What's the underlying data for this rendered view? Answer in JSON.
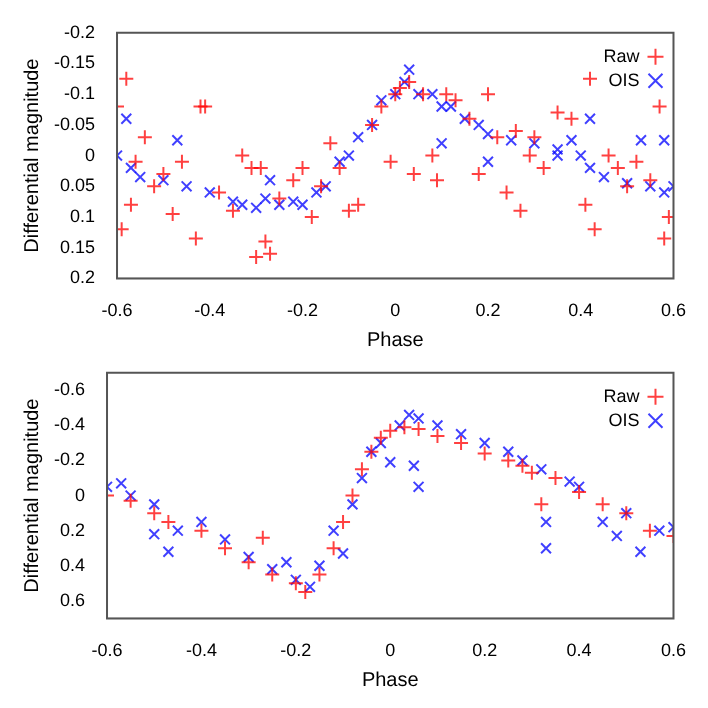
{
  "chart_data": [
    {
      "type": "scatter",
      "xlabel": "Phase",
      "ylabel": "Differential magnitude",
      "xlim": [
        -0.6,
        0.6
      ],
      "xticks": [
        -0.6,
        -0.4,
        -0.2,
        0,
        0.2,
        0.4,
        0.6
      ],
      "ylim": [
        0.2,
        -0.2
      ],
      "yticks": [
        -0.2,
        -0.15,
        -0.1,
        -0.05,
        0,
        0.05,
        0.1,
        0.15,
        0.2
      ],
      "grid": false,
      "legend": "top right",
      "series": [
        {
          "name": "Raw",
          "color": "#ff0000",
          "marker": "cross",
          "x": [
            -0.6,
            -0.59,
            -0.58,
            -0.57,
            -0.56,
            -0.54,
            -0.52,
            -0.5,
            -0.48,
            -0.46,
            -0.43,
            -0.42,
            -0.41,
            -0.38,
            -0.35,
            -0.33,
            -0.31,
            -0.3,
            -0.29,
            -0.28,
            -0.27,
            -0.25,
            -0.22,
            -0.2,
            -0.18,
            -0.16,
            -0.14,
            -0.12,
            -0.1,
            -0.08,
            -0.05,
            -0.03,
            -0.01,
            0,
            0.01,
            0.03,
            0.04,
            0.06,
            0.08,
            0.09,
            0.11,
            0.13,
            0.16,
            0.18,
            0.2,
            0.22,
            0.24,
            0.26,
            0.27,
            0.29,
            0.3,
            0.32,
            0.35,
            0.38,
            0.41,
            0.42,
            0.43,
            0.46,
            0.48,
            0.5,
            0.52,
            0.55,
            0.57,
            0.58,
            0.59
          ],
          "values": [
            -0.08,
            0.12,
            -0.125,
            0.08,
            0.01,
            -0.03,
            0.05,
            0.03,
            0.095,
            0.01,
            0.135,
            -0.08,
            -0.08,
            0.06,
            0.09,
            0,
            0.02,
            0.165,
            0.02,
            0.14,
            0.16,
            0.07,
            0.04,
            0.02,
            0.1,
            0.05,
            -0.02,
            0.02,
            0.09,
            0.08,
            -0.05,
            -0.08,
            0.01,
            -0.1,
            -0.11,
            -0.12,
            0.03,
            -0.1,
            0,
            0.04,
            -0.1,
            -0.09,
            -0.06,
            0.03,
            -0.1,
            -0.03,
            0.06,
            -0.04,
            0.09,
            0,
            -0.03,
            0.02,
            -0.07,
            -0.06,
            0.08,
            -0.125,
            0.12,
            0,
            0.02,
            0.05,
            0.01,
            0.04,
            -0.08,
            0.135,
            0.1
          ]
        },
        {
          "name": "OIS",
          "color": "#0000ff",
          "marker": "x",
          "x": [
            -0.6,
            -0.58,
            -0.57,
            -0.55,
            -0.5,
            -0.47,
            -0.45,
            -0.4,
            -0.35,
            -0.33,
            -0.3,
            -0.28,
            -0.27,
            -0.25,
            -0.22,
            -0.2,
            -0.17,
            -0.15,
            -0.12,
            -0.1,
            -0.08,
            -0.05,
            -0.03,
            0,
            0.02,
            0.03,
            0.05,
            0.08,
            0.1,
            0.1,
            0.12,
            0.15,
            0.18,
            0.2,
            0.2,
            0.25,
            0.3,
            0.35,
            0.35,
            0.38,
            0.4,
            0.42,
            0.42,
            0.45,
            0.5,
            0.53,
            0.55,
            0.58,
            0.58,
            0.6
          ],
          "values": [
            0,
            -0.06,
            0.02,
            0.035,
            0.04,
            -0.025,
            0.05,
            0.06,
            0.075,
            0.08,
            0.085,
            0.07,
            0.04,
            0.08,
            0.075,
            0.08,
            0.06,
            0.05,
            0.01,
            0,
            -0.03,
            -0.05,
            -0.09,
            -0.1,
            -0.12,
            -0.14,
            -0.1,
            -0.1,
            -0.08,
            -0.02,
            -0.08,
            -0.06,
            -0.05,
            -0.035,
            0.01,
            -0.025,
            -0.02,
            -0.01,
            0,
            -0.025,
            0,
            0.02,
            -0.06,
            0.035,
            0.045,
            -0.025,
            0.05,
            0.06,
            -0.025,
            0.05
          ]
        }
      ]
    },
    {
      "type": "scatter",
      "xlabel": "Phase",
      "ylabel": "Differential magnitude",
      "xlim": [
        -0.6,
        0.6
      ],
      "xticks": [
        -0.6,
        -0.4,
        -0.2,
        0,
        0.2,
        0.4,
        0.6
      ],
      "ylim": [
        0.7,
        -0.7
      ],
      "yticks": [
        -0.6,
        -0.4,
        -0.2,
        0,
        0.2,
        0.4,
        0.6
      ],
      "grid": false,
      "legend": "top right",
      "series": [
        {
          "name": "Raw",
          "color": "#ff0000",
          "marker": "cross",
          "x": [
            -0.6,
            -0.55,
            -0.5,
            -0.47,
            -0.4,
            -0.35,
            -0.3,
            -0.27,
            -0.25,
            -0.2,
            -0.18,
            -0.15,
            -0.12,
            -0.1,
            -0.08,
            -0.06,
            -0.04,
            -0.02,
            0,
            0.03,
            0.06,
            0.1,
            0.15,
            0.2,
            0.25,
            0.28,
            0.3,
            0.32,
            0.35,
            0.4,
            0.45,
            0.5,
            0.55,
            0.6
          ],
          "values": [
            0,
            0.03,
            0.1,
            0.15,
            0.2,
            0.3,
            0.38,
            0.24,
            0.45,
            0.5,
            0.55,
            0.45,
            0.3,
            0.15,
            0,
            -0.15,
            -0.25,
            -0.33,
            -0.37,
            -0.39,
            -0.38,
            -0.34,
            -0.3,
            -0.24,
            -0.2,
            -0.17,
            -0.13,
            0.05,
            -0.1,
            -0.02,
            0.05,
            0.1,
            0.2,
            0.23
          ]
        },
        {
          "name": "OIS",
          "color": "#0000ff",
          "marker": "x",
          "x": [
            -0.6,
            -0.57,
            -0.55,
            -0.5,
            -0.5,
            -0.47,
            -0.45,
            -0.4,
            -0.35,
            -0.3,
            -0.25,
            -0.22,
            -0.2,
            -0.17,
            -0.15,
            -0.12,
            -0.1,
            -0.08,
            -0.06,
            -0.04,
            -0.02,
            0,
            0.02,
            0.04,
            0.05,
            0.06,
            0.06,
            0.1,
            0.15,
            0.2,
            0.25,
            0.28,
            0.32,
            0.33,
            0.33,
            0.38,
            0.4,
            0.45,
            0.48,
            0.5,
            0.53,
            0.57,
            0.6
          ],
          "values": [
            -0.05,
            -0.07,
            0,
            0.05,
            0.22,
            0.32,
            0.2,
            0.15,
            0.25,
            0.35,
            0.42,
            0.38,
            0.48,
            0.52,
            0.4,
            0.2,
            0.33,
            0.05,
            -0.1,
            -0.25,
            -0.3,
            -0.19,
            -0.4,
            -0.46,
            -0.17,
            -0.05,
            -0.44,
            -0.4,
            -0.35,
            -0.3,
            -0.25,
            -0.2,
            -0.15,
            0.15,
            0.3,
            -0.08,
            -0.05,
            0.15,
            0.23,
            0.1,
            0.32,
            0.2,
            0.18
          ]
        }
      ]
    }
  ]
}
